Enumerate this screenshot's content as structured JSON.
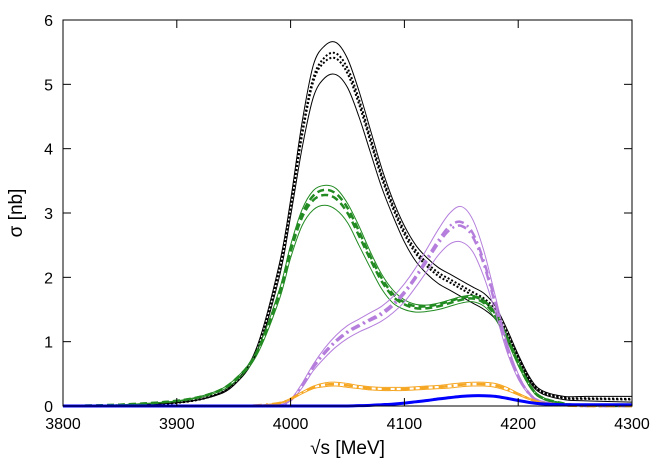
{
  "chart_data": {
    "type": "line",
    "xlabel": "√s [MeV]",
    "ylabel": "σ [nb]",
    "xlim": [
      3800,
      4300
    ],
    "ylim": [
      0,
      6
    ],
    "xticks": [
      3800,
      3900,
      4000,
      4100,
      4200,
      4300
    ],
    "yticks": [
      0,
      1,
      2,
      3,
      4,
      5,
      6
    ],
    "grid": false,
    "x": [
      3800,
      3850,
      3900,
      3930,
      3950,
      3970,
      3990,
      4000,
      4010,
      4020,
      4030,
      4040,
      4050,
      4060,
      4070,
      4080,
      4090,
      4100,
      4110,
      4120,
      4130,
      4140,
      4150,
      4160,
      4170,
      4180,
      4190,
      4200,
      4210,
      4220,
      4240,
      4260,
      4300
    ],
    "series": [
      {
        "color": "#000000",
        "style": "solid",
        "width": 1,
        "values": [
          0,
          0.01,
          0.05,
          0.15,
          0.35,
          0.9,
          2.2,
          3.2,
          4.4,
          5.3,
          5.6,
          5.65,
          5.4,
          4.9,
          4.3,
          3.7,
          3.2,
          2.8,
          2.5,
          2.3,
          2.15,
          2.05,
          1.95,
          1.85,
          1.75,
          1.55,
          1.2,
          0.8,
          0.45,
          0.25,
          0.15,
          0.15,
          0.15
        ]
      },
      {
        "color": "#000000",
        "style": "solid",
        "width": 1,
        "values": [
          0,
          0.01,
          0.05,
          0.14,
          0.32,
          0.82,
          2.0,
          2.95,
          4.0,
          4.8,
          5.1,
          5.15,
          4.95,
          4.5,
          3.95,
          3.4,
          2.95,
          2.55,
          2.25,
          2.05,
          1.9,
          1.8,
          1.7,
          1.6,
          1.5,
          1.35,
          1.05,
          0.7,
          0.38,
          0.2,
          0.1,
          0.08,
          0.06
        ]
      },
      {
        "color": "#000000",
        "style": "dotted",
        "width": 2,
        "values": [
          0,
          0.01,
          0.05,
          0.15,
          0.34,
          0.86,
          2.1,
          3.08,
          4.2,
          5.05,
          5.35,
          5.4,
          5.17,
          4.7,
          4.12,
          3.55,
          3.07,
          2.67,
          2.37,
          2.17,
          2.02,
          1.92,
          1.82,
          1.72,
          1.62,
          1.45,
          1.12,
          0.75,
          0.41,
          0.22,
          0.12,
          0.11,
          0.1
        ]
      },
      {
        "color": "#000000",
        "style": "dotted",
        "width": 2,
        "values": [
          0,
          0.01,
          0.05,
          0.15,
          0.34,
          0.87,
          2.12,
          3.1,
          4.25,
          5.1,
          5.42,
          5.48,
          5.25,
          4.77,
          4.18,
          3.6,
          3.12,
          2.72,
          2.42,
          2.22,
          2.07,
          1.97,
          1.87,
          1.77,
          1.67,
          1.5,
          1.15,
          0.77,
          0.42,
          0.23,
          0.13,
          0.12,
          0.11
        ]
      },
      {
        "color": "#228B22",
        "style": "solid",
        "width": 1,
        "values": [
          0,
          0.02,
          0.08,
          0.2,
          0.4,
          0.85,
          1.8,
          2.5,
          3.05,
          3.35,
          3.43,
          3.38,
          3.15,
          2.8,
          2.4,
          2.05,
          1.8,
          1.65,
          1.58,
          1.57,
          1.6,
          1.65,
          1.7,
          1.72,
          1.65,
          1.45,
          1.1,
          0.7,
          0.35,
          0.15,
          0.04,
          0.01,
          0
        ]
      },
      {
        "color": "#228B22",
        "style": "solid",
        "width": 1,
        "values": [
          0,
          0.02,
          0.07,
          0.18,
          0.36,
          0.78,
          1.65,
          2.3,
          2.8,
          3.05,
          3.12,
          3.05,
          2.85,
          2.5,
          2.15,
          1.82,
          1.6,
          1.5,
          1.46,
          1.47,
          1.5,
          1.55,
          1.6,
          1.62,
          1.55,
          1.35,
          1.02,
          0.63,
          0.3,
          0.12,
          0.03,
          0.01,
          0
        ]
      },
      {
        "color": "#228B22",
        "style": "dashed",
        "width": 2.5,
        "values": [
          0,
          0.02,
          0.08,
          0.19,
          0.38,
          0.82,
          1.73,
          2.4,
          2.93,
          3.2,
          3.28,
          3.22,
          3.0,
          2.65,
          2.28,
          1.94,
          1.7,
          1.58,
          1.52,
          1.52,
          1.55,
          1.6,
          1.65,
          1.67,
          1.6,
          1.4,
          1.06,
          0.66,
          0.32,
          0.13,
          0.035,
          0.01,
          0
        ]
      },
      {
        "color": "#228B22",
        "style": "dashed",
        "width": 2.5,
        "values": [
          0,
          0.02,
          0.08,
          0.19,
          0.39,
          0.83,
          1.76,
          2.45,
          2.98,
          3.27,
          3.36,
          3.3,
          3.08,
          2.72,
          2.33,
          1.99,
          1.74,
          1.61,
          1.55,
          1.55,
          1.58,
          1.63,
          1.68,
          1.7,
          1.63,
          1.43,
          1.08,
          0.68,
          0.33,
          0.14,
          0.04,
          0.01,
          0
        ]
      },
      {
        "color": "#B57EDC",
        "style": "solid",
        "width": 1,
        "values": [
          0,
          0,
          0,
          0,
          0,
          0,
          0.02,
          0.1,
          0.35,
          0.65,
          0.9,
          1.1,
          1.25,
          1.35,
          1.45,
          1.55,
          1.7,
          1.9,
          2.15,
          2.45,
          2.75,
          3.0,
          3.1,
          2.9,
          2.4,
          1.7,
          1.0,
          0.5,
          0.2,
          0.08,
          0.02,
          0,
          0
        ]
      },
      {
        "color": "#B57EDC",
        "style": "solid",
        "width": 1,
        "values": [
          0,
          0,
          0,
          0,
          0,
          0,
          0.02,
          0.08,
          0.28,
          0.55,
          0.75,
          0.92,
          1.05,
          1.15,
          1.23,
          1.32,
          1.45,
          1.62,
          1.85,
          2.1,
          2.35,
          2.52,
          2.55,
          2.4,
          2.0,
          1.45,
          0.85,
          0.42,
          0.17,
          0.06,
          0.01,
          0,
          0
        ]
      },
      {
        "color": "#B57EDC",
        "style": "dashdot",
        "width": 2.5,
        "values": [
          0,
          0,
          0,
          0,
          0,
          0,
          0.02,
          0.09,
          0.31,
          0.6,
          0.82,
          1.0,
          1.14,
          1.24,
          1.33,
          1.42,
          1.56,
          1.75,
          1.99,
          2.26,
          2.53,
          2.74,
          2.8,
          2.63,
          2.19,
          1.57,
          0.92,
          0.46,
          0.18,
          0.07,
          0.015,
          0,
          0
        ]
      },
      {
        "color": "#B57EDC",
        "style": "dashdot",
        "width": 2.5,
        "values": [
          0,
          0,
          0,
          0,
          0,
          0,
          0.02,
          0.09,
          0.32,
          0.61,
          0.84,
          1.02,
          1.16,
          1.26,
          1.35,
          1.45,
          1.59,
          1.78,
          2.02,
          2.3,
          2.58,
          2.8,
          2.86,
          2.69,
          2.24,
          1.61,
          0.94,
          0.47,
          0.19,
          0.07,
          0.015,
          0,
          0
        ]
      },
      {
        "color": "#F5A623",
        "style": "solid",
        "width": 1,
        "values": [
          0,
          0,
          0,
          0,
          0,
          0.01,
          0.05,
          0.12,
          0.22,
          0.31,
          0.36,
          0.37,
          0.35,
          0.32,
          0.3,
          0.29,
          0.29,
          0.29,
          0.3,
          0.31,
          0.32,
          0.34,
          0.36,
          0.37,
          0.37,
          0.35,
          0.29,
          0.2,
          0.12,
          0.06,
          0.015,
          0,
          0
        ]
      },
      {
        "color": "#F5A623",
        "style": "solid",
        "width": 1,
        "values": [
          0,
          0,
          0,
          0,
          0,
          0.01,
          0.04,
          0.1,
          0.19,
          0.27,
          0.3,
          0.31,
          0.29,
          0.27,
          0.25,
          0.24,
          0.24,
          0.24,
          0.25,
          0.26,
          0.27,
          0.28,
          0.3,
          0.31,
          0.31,
          0.29,
          0.24,
          0.17,
          0.1,
          0.05,
          0.012,
          0,
          0
        ]
      },
      {
        "color": "#F5A623",
        "style": "dashdot",
        "width": 2.5,
        "values": [
          0,
          0,
          0,
          0,
          0,
          0.01,
          0.045,
          0.11,
          0.205,
          0.29,
          0.33,
          0.34,
          0.32,
          0.295,
          0.275,
          0.265,
          0.265,
          0.265,
          0.275,
          0.285,
          0.295,
          0.31,
          0.33,
          0.34,
          0.34,
          0.32,
          0.265,
          0.185,
          0.11,
          0.055,
          0.013,
          0,
          0
        ]
      },
      {
        "color": "#0000FF",
        "style": "solid",
        "width": 3,
        "values": [
          0,
          0,
          0,
          0,
          0,
          0,
          0,
          0,
          0,
          0,
          0,
          0,
          0,
          0.005,
          0.01,
          0.02,
          0.03,
          0.045,
          0.065,
          0.085,
          0.11,
          0.13,
          0.15,
          0.16,
          0.16,
          0.15,
          0.12,
          0.085,
          0.055,
          0.035,
          0.02,
          0.02,
          0.02
        ]
      }
    ]
  }
}
